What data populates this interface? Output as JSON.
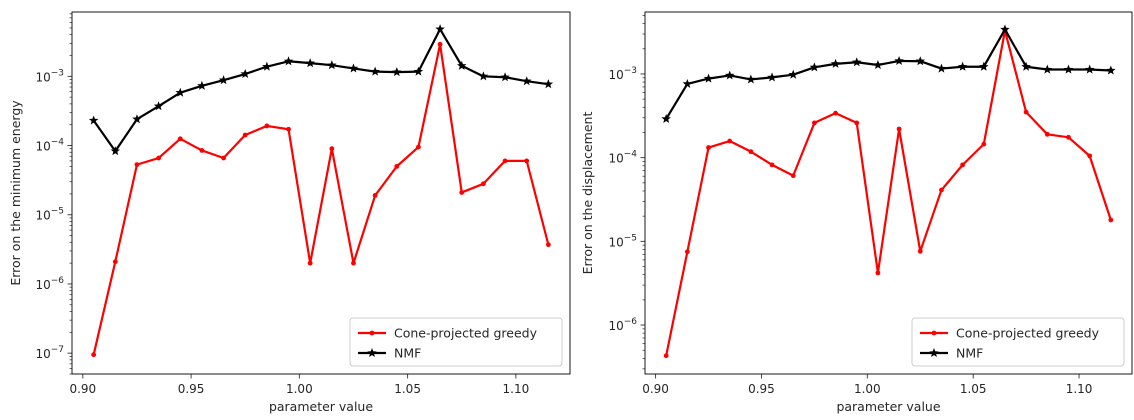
{
  "chart_data": [
    {
      "type": "line",
      "xlabel": "parameter value",
      "ylabel": "Error on the minimum energy",
      "yscale": "log",
      "xlim": [
        0.895,
        1.125
      ],
      "ylim": [
        5e-08,
        0.0085
      ],
      "xticks": [
        {
          "value": 0.9,
          "label": "0.90"
        },
        {
          "value": 0.95,
          "label": "0.95"
        },
        {
          "value": 1.0,
          "label": "1.00"
        },
        {
          "value": 1.05,
          "label": "1.05"
        },
        {
          "value": 1.1,
          "label": "1.10"
        }
      ],
      "yticks": [
        {
          "value": 1e-07,
          "base": "10",
          "exp": "−7"
        },
        {
          "value": 1e-06,
          "base": "10",
          "exp": "−6"
        },
        {
          "value": 1e-05,
          "base": "10",
          "exp": "−5"
        },
        {
          "value": 0.0001,
          "base": "10",
          "exp": "−4"
        },
        {
          "value": 0.001,
          "base": "10",
          "exp": "−3"
        }
      ],
      "legend_position": "lower right",
      "x": [
        0.905,
        0.915,
        0.925,
        0.935,
        0.945,
        0.955,
        0.965,
        0.975,
        0.985,
        0.995,
        1.005,
        1.015,
        1.025,
        1.035,
        1.045,
        1.055,
        1.065,
        1.075,
        1.085,
        1.095,
        1.105,
        1.115
      ],
      "series": [
        {
          "name": "Cone-projected greedy",
          "color": "#ff0000",
          "marker": "dot",
          "values": [
            9.5e-08,
            2.1e-06,
            5.3e-05,
            6.6e-05,
            0.000125,
            8.5e-05,
            6.6e-05,
            0.000142,
            0.000192,
            0.000172,
            2e-06,
            9e-05,
            2e-06,
            1.9e-05,
            5e-05,
            9.5e-05,
            0.0029,
            2.1e-05,
            2.8e-05,
            6e-05,
            6e-05,
            3.7e-06
          ]
        },
        {
          "name": "NMF",
          "color": "#000000",
          "marker": "star",
          "values": [
            0.00023,
            8.3e-05,
            0.00024,
            0.00037,
            0.00058,
            0.00073,
            0.00088,
            0.00108,
            0.00138,
            0.00165,
            0.00155,
            0.00145,
            0.0013,
            0.00117,
            0.00115,
            0.00117,
            0.0048,
            0.00142,
            0.001,
            0.00097,
            0.00085,
            0.00077
          ]
        }
      ]
    },
    {
      "type": "line",
      "xlabel": "parameter value",
      "ylabel": "Error on the displacement",
      "yscale": "log",
      "xlim": [
        0.895,
        1.125
      ],
      "ylim": [
        2.6e-07,
        0.0055
      ],
      "xticks": [
        {
          "value": 0.9,
          "label": "0.90"
        },
        {
          "value": 0.95,
          "label": "0.95"
        },
        {
          "value": 1.0,
          "label": "1.00"
        },
        {
          "value": 1.05,
          "label": "1.05"
        },
        {
          "value": 1.1,
          "label": "1.10"
        }
      ],
      "yticks": [
        {
          "value": 1e-06,
          "base": "10",
          "exp": "−6"
        },
        {
          "value": 1e-05,
          "base": "10",
          "exp": "−5"
        },
        {
          "value": 0.0001,
          "base": "10",
          "exp": "−4"
        },
        {
          "value": 0.001,
          "base": "10",
          "exp": "−3"
        }
      ],
      "legend_position": "lower right",
      "x": [
        0.905,
        0.915,
        0.925,
        0.935,
        0.945,
        0.955,
        0.965,
        0.975,
        0.985,
        0.995,
        1.005,
        1.015,
        1.025,
        1.035,
        1.045,
        1.055,
        1.065,
        1.075,
        1.085,
        1.095,
        1.105,
        1.115
      ],
      "series": [
        {
          "name": "Cone-projected greedy",
          "color": "#ff0000",
          "marker": "dot",
          "values": [
            4.3e-07,
            7.5e-06,
            0.000132,
            0.000158,
            0.000118,
            8.2e-05,
            6.1e-05,
            0.00026,
            0.00034,
            0.00026,
            4.2e-06,
            0.00022,
            7.6e-06,
            4.1e-05,
            8.2e-05,
            0.000145,
            0.0033,
            0.00035,
            0.00019,
            0.000175,
            0.000105,
            1.8e-05
          ]
        },
        {
          "name": "NMF",
          "color": "#000000",
          "marker": "star",
          "values": [
            0.00029,
            0.00076,
            0.00088,
            0.00096,
            0.00086,
            0.00091,
            0.00098,
            0.0012,
            0.00132,
            0.00138,
            0.00128,
            0.00143,
            0.00142,
            0.00116,
            0.00122,
            0.00122,
            0.0034,
            0.00122,
            0.00113,
            0.00113,
            0.00113,
            0.0011
          ]
        }
      ]
    }
  ]
}
